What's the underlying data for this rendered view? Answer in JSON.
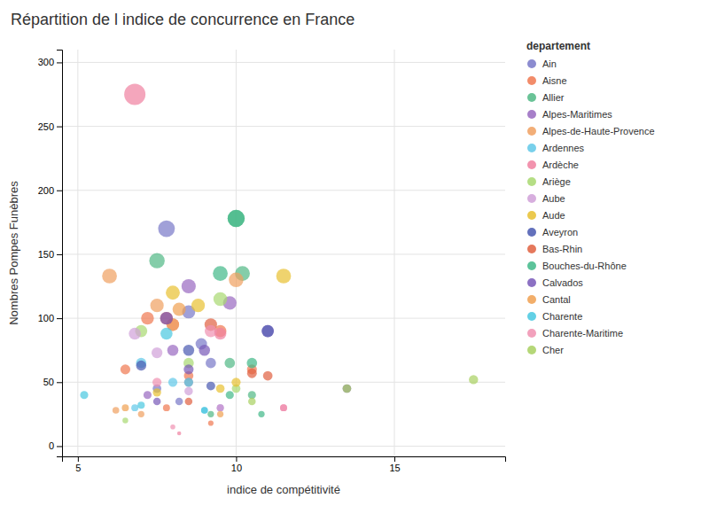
{
  "chart_data": {
    "type": "scatter",
    "title": "Répartition de l indice de concurrence en France",
    "xlabel": "indice de compétitivité",
    "ylabel": "Nombres Pompes Funèbres",
    "legend_title": "departement",
    "legend": "right",
    "grid": true,
    "xlim": [
      4.5,
      18.5
    ],
    "ylim": [
      -8,
      310
    ],
    "xticks": [
      5,
      10,
      15
    ],
    "yticks": [
      0,
      50,
      100,
      150,
      200,
      250,
      300
    ],
    "series": [
      {
        "name": "Ain",
        "color": "#7878c8",
        "x": [
          7.8,
          8.5,
          8.9,
          9.2,
          7.5,
          8.2
        ],
        "values": [
          170,
          105,
          80,
          65,
          45,
          35
        ],
        "sizes": [
          170,
          105,
          80,
          65,
          45,
          35
        ]
      },
      {
        "name": "Aisne",
        "color": "#f07850",
        "x": [
          6.5,
          7.2,
          8.0,
          9.5,
          10.5,
          8.5,
          7.8,
          9.2
        ],
        "values": [
          60,
          100,
          95,
          90,
          60,
          55,
          30,
          18
        ],
        "sizes": [
          60,
          100,
          95,
          90,
          60,
          55,
          30,
          18
        ]
      },
      {
        "name": "Allier",
        "color": "#50b885",
        "x": [
          7.5,
          10.0,
          10.2,
          9.8,
          10.5,
          9.2
        ],
        "values": [
          145,
          178,
          135,
          65,
          40,
          25
        ],
        "sizes": [
          145,
          178,
          135,
          65,
          40,
          25
        ]
      },
      {
        "name": "Alpes-Maritimes",
        "color": "#9868c0",
        "x": [
          8.5,
          9.8,
          11.0,
          8.0,
          7.2,
          9.5
        ],
        "values": [
          125,
          112,
          90,
          75,
          40,
          30
        ],
        "sizes": [
          125,
          112,
          90,
          75,
          40,
          30
        ]
      },
      {
        "name": "Alpes-de-Haute-Provence",
        "color": "#f0a060",
        "x": [
          6.0,
          7.5,
          10.0,
          8.0,
          6.2,
          7.0
        ],
        "values": [
          133,
          110,
          130,
          95,
          28,
          25
        ],
        "sizes": [
          133,
          110,
          130,
          95,
          28,
          25
        ]
      },
      {
        "name": "Ardennes",
        "color": "#60c8e8",
        "x": [
          7.0,
          8.0,
          6.8,
          9.0
        ],
        "values": [
          65,
          50,
          30,
          28
        ],
        "sizes": [
          65,
          50,
          30,
          28
        ]
      },
      {
        "name": "Ardèche",
        "color": "#f080a0",
        "x": [
          6.8,
          9.5,
          8.5,
          11.5,
          8.2
        ],
        "values": [
          275,
          88,
          50,
          30,
          10
        ],
        "sizes": [
          275,
          88,
          50,
          30,
          10
        ]
      },
      {
        "name": "Ariège",
        "color": "#a8d870",
        "x": [
          7.0,
          9.5,
          8.5,
          6.5,
          10.0
        ],
        "values": [
          90,
          115,
          65,
          20,
          45
        ],
        "sizes": [
          90,
          115,
          65,
          20,
          45
        ]
      },
      {
        "name": "Aube",
        "color": "#d0a0d8",
        "x": [
          6.8,
          7.5,
          8.5,
          9.5
        ],
        "values": [
          88,
          73,
          43,
          30
        ],
        "sizes": [
          88,
          73,
          43,
          30
        ]
      },
      {
        "name": "Aude",
        "color": "#e8c030",
        "x": [
          8.0,
          8.8,
          11.5,
          10.0,
          9.5,
          7.5
        ],
        "values": [
          120,
          110,
          133,
          50,
          45,
          42
        ],
        "sizes": [
          120,
          110,
          133,
          50,
          45,
          42
        ]
      },
      {
        "name": "Aveyron",
        "color": "#4858b0",
        "x": [
          11.0,
          8.5,
          7.0,
          9.2
        ],
        "values": [
          90,
          75,
          63,
          47
        ],
        "sizes": [
          90,
          75,
          63,
          47
        ]
      },
      {
        "name": "Bas-Rhin",
        "color": "#e06040",
        "x": [
          7.8,
          9.2,
          10.5,
          11.0,
          8.5
        ],
        "values": [
          100,
          95,
          57,
          55,
          35
        ],
        "sizes": [
          100,
          95,
          57,
          55,
          35
        ]
      },
      {
        "name": "Bouches-du-Rhône",
        "color": "#40b888",
        "x": [
          10.0,
          9.5,
          10.5,
          9.8,
          10.8
        ],
        "values": [
          178,
          135,
          65,
          40,
          25
        ],
        "sizes": [
          178,
          135,
          65,
          40,
          25
        ]
      },
      {
        "name": "Calvados",
        "color": "#7858b8",
        "x": [
          7.8,
          9.0,
          8.5,
          13.5,
          7.5
        ],
        "values": [
          100,
          75,
          60,
          45,
          35
        ],
        "sizes": [
          100,
          75,
          60,
          45,
          35
        ]
      },
      {
        "name": "Cantal",
        "color": "#f0a050",
        "x": [
          8.2,
          6.5,
          9.5
        ],
        "values": [
          107,
          30,
          25
        ],
        "sizes": [
          107,
          30,
          25
        ]
      },
      {
        "name": "Charente",
        "color": "#48c8e0",
        "x": [
          5.2,
          7.8,
          8.5,
          7.0,
          9.0
        ],
        "values": [
          40,
          88,
          50,
          32,
          28
        ],
        "sizes": [
          40,
          88,
          50,
          32,
          28
        ]
      },
      {
        "name": "Charente-Maritime",
        "color": "#f090b0",
        "x": [
          9.2,
          7.5,
          11.5,
          8.0
        ],
        "values": [
          90,
          50,
          30,
          15
        ],
        "sizes": [
          90,
          50,
          30,
          15
        ]
      },
      {
        "name": "Cher",
        "color": "#a8d060",
        "x": [
          17.5,
          13.5,
          10.5
        ],
        "values": [
          52,
          45,
          35
        ],
        "sizes": [
          52,
          45,
          35
        ]
      }
    ]
  }
}
